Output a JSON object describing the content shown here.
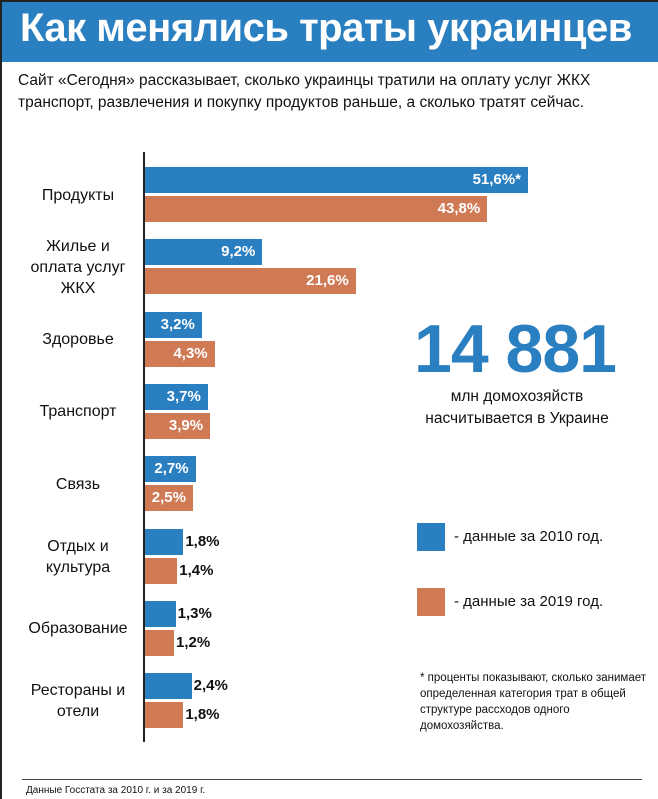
{
  "title": "Как менялись траты украинцев",
  "subtitle": "Сайт «Сегодня» рассказывает, сколько украинцы тратили на оплату услуг ЖКХ транспорт, развлечения и покупку продуктов раньше, а сколько тратят сейчас.",
  "highlight": {
    "number": "14 881",
    "caption": "млн домохозяйств насчитывается в Украине"
  },
  "footnote": "* проценты показывают, сколько занимает определенная категория трат в общей структуре рассходов одного домохозяйства.",
  "source": "Данные Госстата за 2010 г. и за 2019 г.",
  "chart_data": {
    "type": "bar",
    "orientation": "horizontal",
    "categories": [
      "Продукты",
      "Жилье и оплата услуг ЖКХ",
      "Здоровье",
      "Транспорт",
      "Связь",
      "Отдых и культура",
      "Образование",
      "Рестораны и отели"
    ],
    "series": [
      {
        "name": "- данные за 2010 год.",
        "color": "#2a7fc1",
        "values": [
          51.6,
          9.2,
          3.2,
          3.7,
          2.7,
          1.8,
          1.3,
          2.4
        ],
        "labels": [
          "51,6%*",
          "9,2%",
          "3,2%",
          "3,7%",
          "2,7%",
          "1,8%",
          "1,3%",
          "2,4%"
        ]
      },
      {
        "name": "- данные за 2019 год.",
        "color": "#d07a55",
        "values": [
          43.8,
          21.6,
          4.3,
          3.9,
          2.5,
          1.4,
          1.2,
          1.8
        ],
        "labels": [
          "43,8%",
          "21,6%",
          "4,3%",
          "3,9%",
          "2,5%",
          "1,4%",
          "1,2%",
          "1,8%"
        ]
      }
    ],
    "legend": "right",
    "unit": "%"
  }
}
